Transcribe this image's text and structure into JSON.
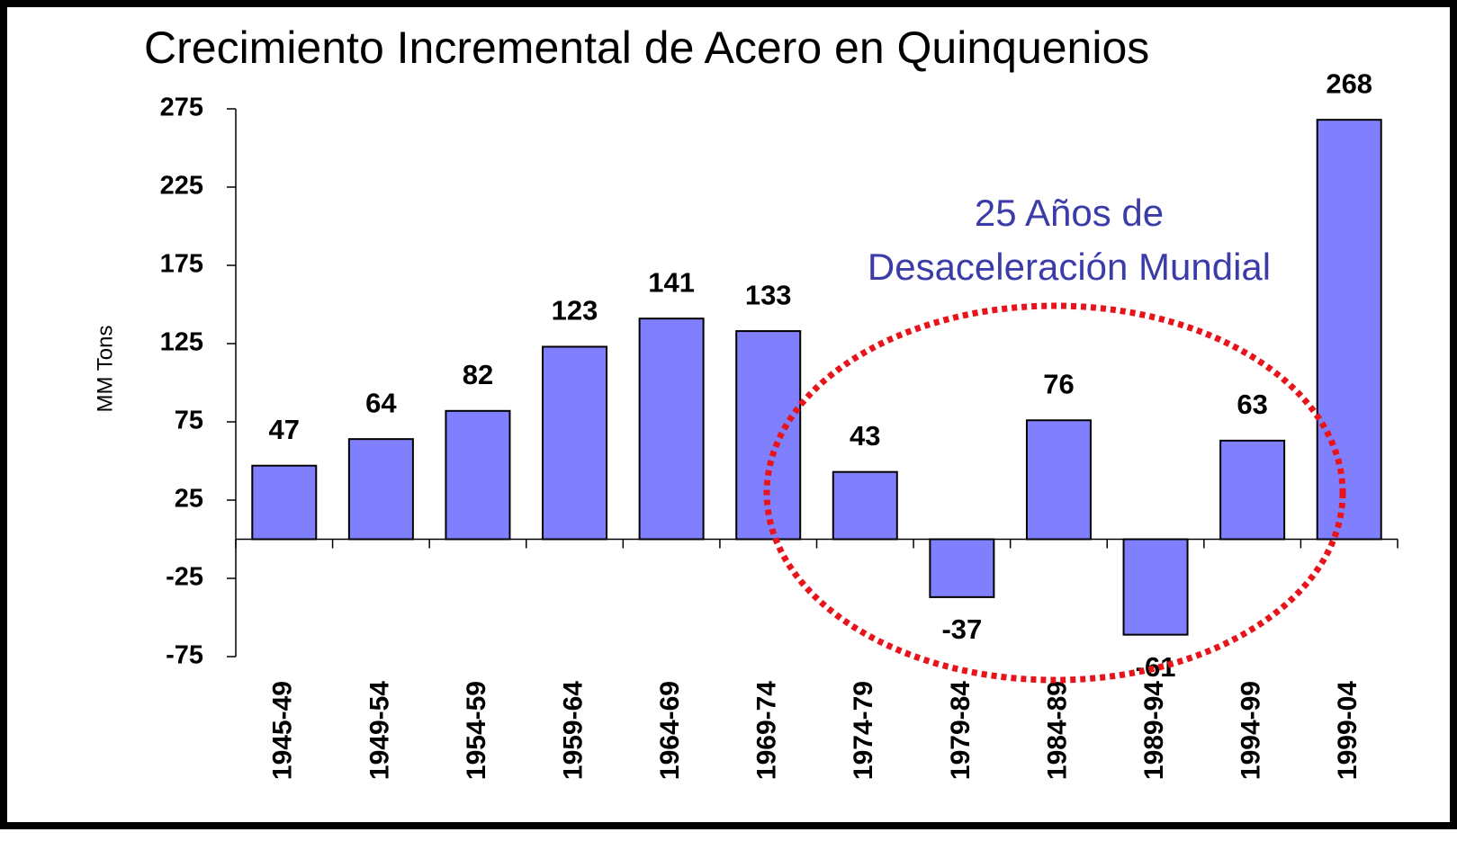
{
  "chart_data": {
    "type": "bar",
    "title": "Crecimiento Incremental de Acero en Quinquenios",
    "y_label": "MM Tons",
    "annotation": [
      "25 Años de",
      "Desaceleración Mundial"
    ],
    "categories": [
      "1945-49",
      "1949-54",
      "1954-59",
      "1959-64",
      "1964-69",
      "1969-74",
      "1974-79",
      "1979-84",
      "1984-89",
      "1989-94",
      "1994-99",
      "1999-04"
    ],
    "values": [
      47,
      64,
      82,
      123,
      141,
      133,
      43,
      -37,
      76,
      -61,
      63,
      268
    ],
    "color": "#8080ff",
    "ylim": [
      -75,
      275
    ],
    "yticks": [
      -75,
      -25,
      25,
      75,
      125,
      175,
      225,
      275
    ]
  }
}
